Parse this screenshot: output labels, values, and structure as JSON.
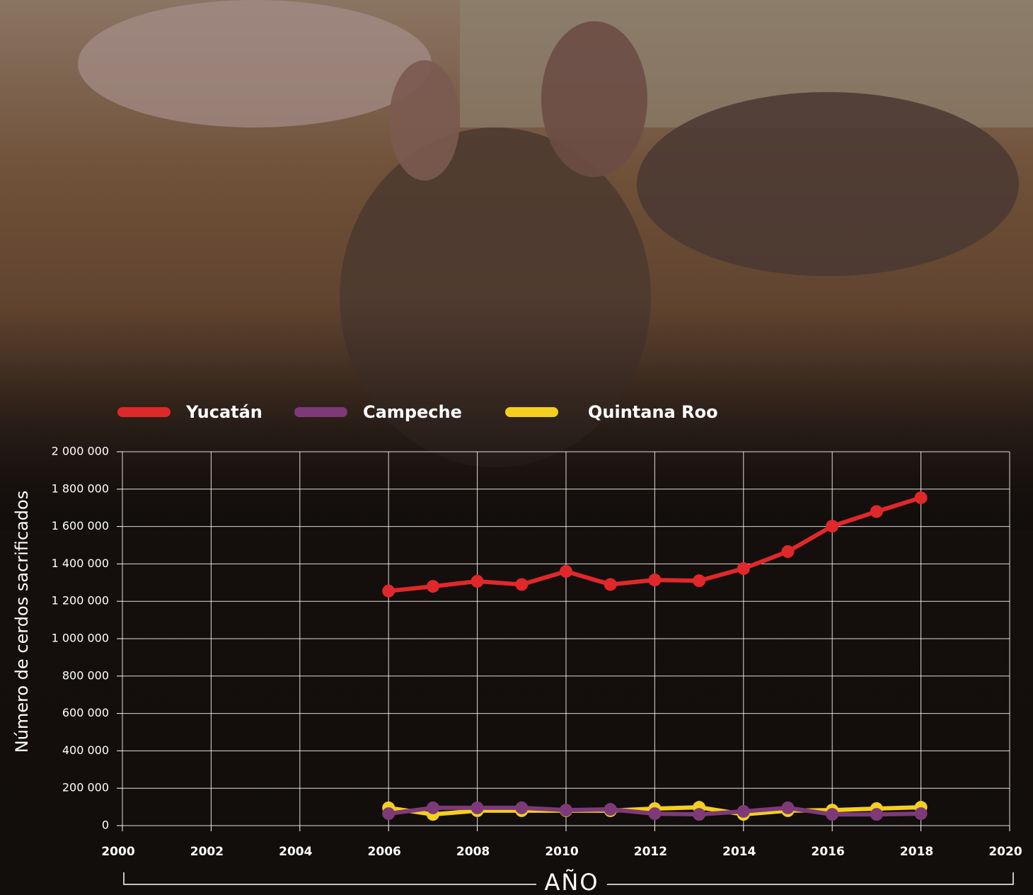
{
  "chart_data": {
    "type": "line",
    "x_label": "AÑO",
    "y_label": "Número de cerdos sacrificados",
    "x": [
      2006,
      2007,
      2008,
      2009,
      2010,
      2011,
      2012,
      2013,
      2014,
      2015,
      2016,
      2017,
      2018
    ],
    "series": [
      {
        "name": "Yucatán",
        "color": "#e0282a",
        "values": [
          1255000,
          1280000,
          1307000,
          1290000,
          1360000,
          1290000,
          1314000,
          1310000,
          1375000,
          1466000,
          1602000,
          1680000,
          1754000
        ]
      },
      {
        "name": "Campeche",
        "color": "#7e3a78",
        "values": [
          64000,
          95000,
          95000,
          95000,
          83000,
          87000,
          64000,
          60000,
          76000,
          95000,
          60000,
          60000,
          64000
        ]
      },
      {
        "name": "Quintana Roo",
        "color": "#f5cf1d",
        "values": [
          95000,
          60000,
          80000,
          80000,
          80000,
          80000,
          91000,
          98000,
          60000,
          80000,
          83000,
          91000,
          98000
        ]
      }
    ],
    "xlim": [
      2000,
      2020
    ],
    "xticks": [
      2000,
      2002,
      2004,
      2006,
      2008,
      2010,
      2012,
      2014,
      2016,
      2018,
      2020
    ],
    "ylim": [
      0,
      2000000
    ],
    "yticks": [
      0,
      {
        "value": 200000,
        "label": "200 000"
      },
      {
        "value": 400000,
        "label": "400 000"
      },
      {
        "value": 600000,
        "label": "600 000"
      },
      {
        "value": 800000,
        "label": "800 000"
      },
      {
        "value": 1000000,
        "label": "1 000 000"
      },
      {
        "value": 1200000,
        "label": "1 200 000"
      },
      {
        "value": 1400000,
        "label": "1 400 000"
      },
      {
        "value": 1600000,
        "label": "1 600 000"
      },
      {
        "value": 1800000,
        "label": "1 800 000"
      },
      {
        "value": 2000000,
        "label": "2 000 000"
      }
    ],
    "grid": true
  }
}
